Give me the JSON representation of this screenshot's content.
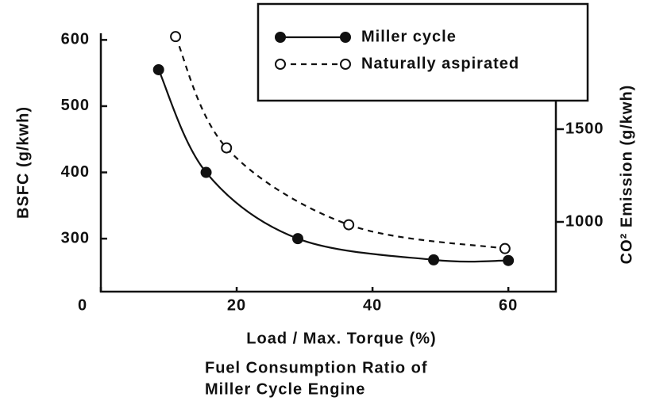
{
  "chart_data": {
    "type": "line",
    "x_label": "Load / Max. Torque (%)",
    "y_label": "BSFC (g/kwh)",
    "y2_label": "CO² Emission (g/kwh)",
    "caption": [
      "Fuel Consumption Ratio of",
      "Miller Cycle Engine"
    ],
    "xlim": [
      0,
      67
    ],
    "xticks": [
      0,
      20,
      40,
      60
    ],
    "ylim": [
      220,
      610
    ],
    "yticks": [
      300,
      400,
      500,
      600
    ],
    "y2lim": [
      624,
      2017
    ],
    "y2ticks": [
      1000,
      1500
    ],
    "legend": "upper right",
    "series": [
      {
        "name": "Miller cycle",
        "color": "#111111",
        "style": "solid",
        "marker": "filled",
        "x": [
          8.5,
          15.5,
          29,
          49,
          60
        ],
        "values": [
          555,
          400,
          300,
          268,
          267
        ]
      },
      {
        "name": "Naturally aspirated",
        "color": "#111111",
        "style": "dashed",
        "marker": "open",
        "x": [
          11,
          18.5,
          36.5,
          59.5
        ],
        "values": [
          605,
          437,
          321,
          285
        ]
      }
    ]
  }
}
